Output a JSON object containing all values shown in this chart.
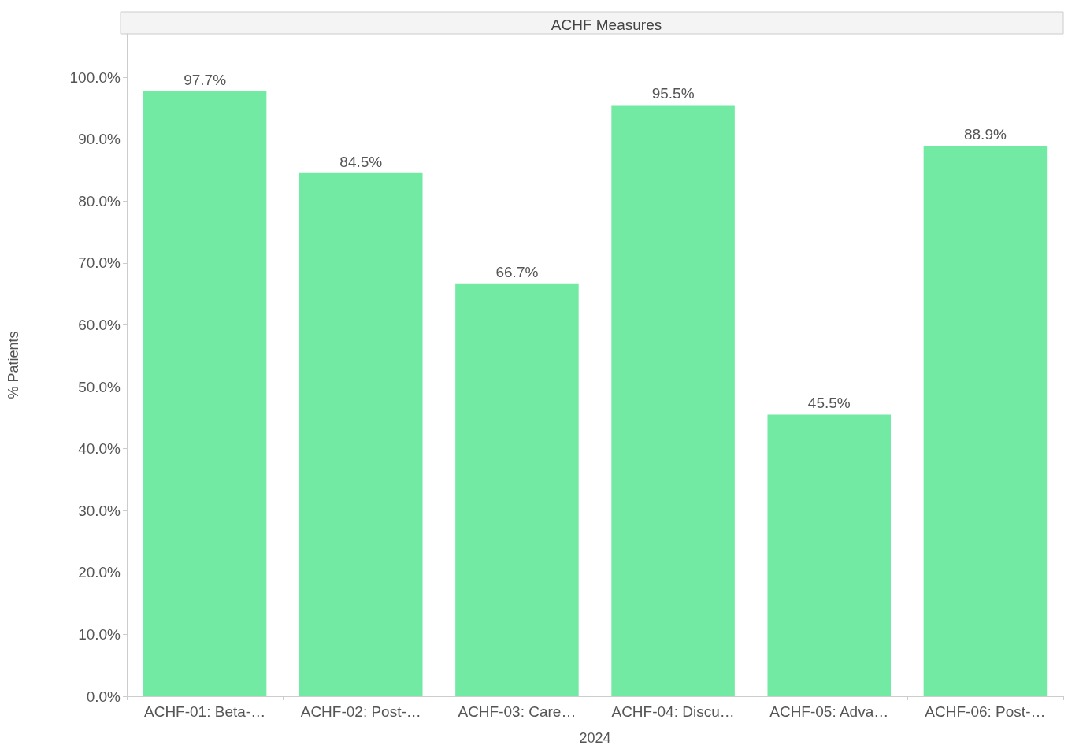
{
  "chart_data": {
    "type": "bar",
    "title": "ACHF Measures",
    "xlabel": "2024",
    "ylabel": "% Patients",
    "categories": [
      "ACHF-01: Beta-…",
      "ACHF-02: Post-…",
      "ACHF-03: Care…",
      "ACHF-04: Discu…",
      "ACHF-05: Adva…",
      "ACHF-06: Post-…"
    ],
    "values": [
      97.7,
      84.5,
      66.7,
      95.5,
      45.5,
      88.9
    ],
    "value_labels": [
      "97.7%",
      "84.5%",
      "66.7%",
      "95.5%",
      "45.5%",
      "88.9%"
    ],
    "color": "#72eaa4",
    "ylim": [
      0,
      107
    ],
    "yticks": [
      {
        "value": 0,
        "label": "0.0%"
      },
      {
        "value": 10,
        "label": "10.0%"
      },
      {
        "value": 20,
        "label": "20.0%"
      },
      {
        "value": 30,
        "label": "30.0%"
      },
      {
        "value": 40,
        "label": "40.0%"
      },
      {
        "value": 50,
        "label": "50.0%"
      },
      {
        "value": 60,
        "label": "60.0%"
      },
      {
        "value": 70,
        "label": "70.0%"
      },
      {
        "value": 80,
        "label": "80.0%"
      },
      {
        "value": 90,
        "label": "90.0%"
      },
      {
        "value": 100,
        "label": "100.0%"
      }
    ],
    "grid": false
  }
}
